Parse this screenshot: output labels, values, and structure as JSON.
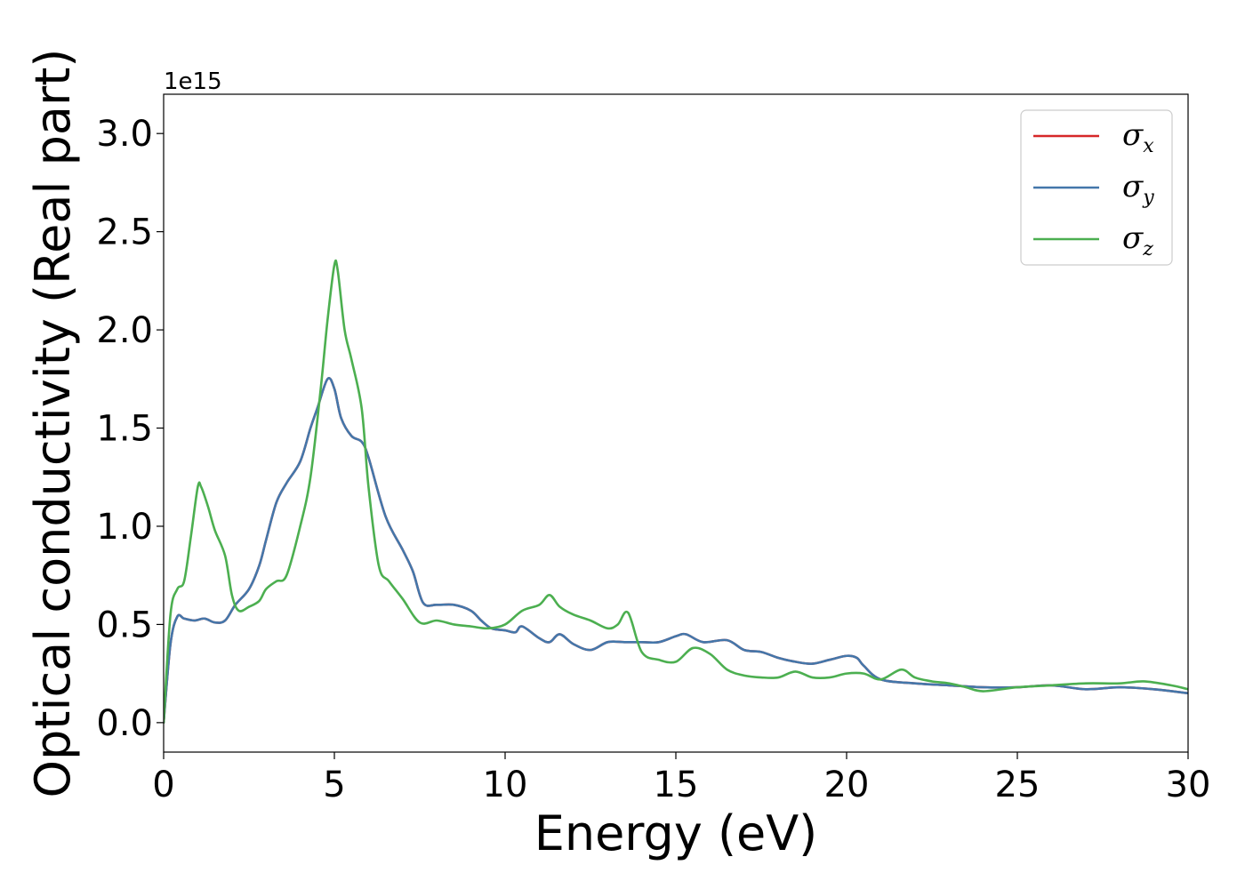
{
  "chart_data": {
    "type": "line",
    "title": "",
    "xlabel": "Energy (eV)",
    "ylabel": "Optical conductivity (Real part)",
    "y_offset_label": "1e15",
    "xlim": [
      0,
      30
    ],
    "ylim": [
      -0.15,
      3.2
    ],
    "x_ticks": [
      0,
      5,
      10,
      15,
      20,
      25,
      30
    ],
    "x_tick_labels": [
      "0",
      "5",
      "10",
      "15",
      "20",
      "25",
      "30"
    ],
    "y_ticks": [
      0.0,
      0.5,
      1.0,
      1.5,
      2.0,
      2.5,
      3.0
    ],
    "y_tick_labels": [
      "0.0",
      "0.5",
      "1.0",
      "1.5",
      "2.0",
      "2.5",
      "3.0"
    ],
    "grid": false,
    "legend_position": "top-right",
    "series": [
      {
        "name": "σx",
        "legend_symbol": "σ",
        "legend_sub": "x",
        "color": "#d62728",
        "x": [
          0,
          0.2,
          0.4,
          0.6,
          0.9,
          1.2,
          1.5,
          1.8,
          2.1,
          2.5,
          2.8,
          3.0,
          3.3,
          3.6,
          4.0,
          4.3,
          4.5,
          4.8,
          5.0,
          5.2,
          5.5,
          5.8,
          6.0,
          6.5,
          7.0,
          7.3,
          7.6,
          8.0,
          8.5,
          9.0,
          9.3,
          9.6,
          10.0,
          10.3,
          10.5,
          11.0,
          11.3,
          11.6,
          12.0,
          12.5,
          13.0,
          13.5,
          14.0,
          14.5,
          15.0,
          15.3,
          15.8,
          16.5,
          17.0,
          17.5,
          18.0,
          18.5,
          19.0,
          19.5,
          20.0,
          20.3,
          20.5,
          21.0,
          22.0,
          23.0,
          24.0,
          25.0,
          26.0,
          27.0,
          28.0,
          29.0,
          30.0
        ],
        "values": [
          0.0,
          0.4,
          0.54,
          0.53,
          0.52,
          0.53,
          0.51,
          0.52,
          0.6,
          0.68,
          0.8,
          0.93,
          1.12,
          1.22,
          1.33,
          1.5,
          1.6,
          1.75,
          1.7,
          1.55,
          1.46,
          1.43,
          1.35,
          1.05,
          0.88,
          0.77,
          0.61,
          0.6,
          0.6,
          0.57,
          0.52,
          0.48,
          0.47,
          0.46,
          0.49,
          0.43,
          0.41,
          0.45,
          0.4,
          0.37,
          0.41,
          0.41,
          0.41,
          0.41,
          0.44,
          0.45,
          0.41,
          0.42,
          0.37,
          0.36,
          0.33,
          0.31,
          0.3,
          0.32,
          0.34,
          0.33,
          0.29,
          0.22,
          0.2,
          0.19,
          0.18,
          0.18,
          0.19,
          0.17,
          0.18,
          0.17,
          0.15
        ]
      },
      {
        "name": "σy",
        "legend_symbol": "σ",
        "legend_sub": "y",
        "color": "#4477aa",
        "x": [
          0,
          0.2,
          0.4,
          0.6,
          0.9,
          1.2,
          1.5,
          1.8,
          2.1,
          2.5,
          2.8,
          3.0,
          3.3,
          3.6,
          4.0,
          4.3,
          4.5,
          4.8,
          5.0,
          5.2,
          5.5,
          5.8,
          6.0,
          6.5,
          7.0,
          7.3,
          7.6,
          8.0,
          8.5,
          9.0,
          9.3,
          9.6,
          10.0,
          10.3,
          10.5,
          11.0,
          11.3,
          11.6,
          12.0,
          12.5,
          13.0,
          13.5,
          14.0,
          14.5,
          15.0,
          15.3,
          15.8,
          16.5,
          17.0,
          17.5,
          18.0,
          18.5,
          19.0,
          19.5,
          20.0,
          20.3,
          20.5,
          21.0,
          22.0,
          23.0,
          24.0,
          25.0,
          26.0,
          27.0,
          28.0,
          29.0,
          30.0
        ],
        "values": [
          0.0,
          0.4,
          0.54,
          0.53,
          0.52,
          0.53,
          0.51,
          0.52,
          0.6,
          0.68,
          0.8,
          0.93,
          1.12,
          1.22,
          1.33,
          1.5,
          1.6,
          1.75,
          1.7,
          1.55,
          1.46,
          1.43,
          1.35,
          1.05,
          0.88,
          0.77,
          0.61,
          0.6,
          0.6,
          0.57,
          0.52,
          0.48,
          0.47,
          0.46,
          0.49,
          0.43,
          0.41,
          0.45,
          0.4,
          0.37,
          0.41,
          0.41,
          0.41,
          0.41,
          0.44,
          0.45,
          0.41,
          0.42,
          0.37,
          0.36,
          0.33,
          0.31,
          0.3,
          0.32,
          0.34,
          0.33,
          0.29,
          0.22,
          0.2,
          0.19,
          0.18,
          0.18,
          0.19,
          0.17,
          0.18,
          0.17,
          0.15
        ]
      },
      {
        "name": "σz",
        "legend_symbol": "σ",
        "legend_sub": "z",
        "color": "#4caf50",
        "x": [
          0,
          0.2,
          0.4,
          0.6,
          0.8,
          1.0,
          1.1,
          1.3,
          1.5,
          1.8,
          2.0,
          2.2,
          2.5,
          2.8,
          3.0,
          3.3,
          3.6,
          4.0,
          4.3,
          4.6,
          4.8,
          5.0,
          5.1,
          5.3,
          5.5,
          5.8,
          6.0,
          6.3,
          6.6,
          7.0,
          7.5,
          8.0,
          8.5,
          9.0,
          9.5,
          10.0,
          10.5,
          11.0,
          11.3,
          11.6,
          12.0,
          12.5,
          13.0,
          13.3,
          13.6,
          14.0,
          14.5,
          15.0,
          15.5,
          16.0,
          16.5,
          17.0,
          17.5,
          18.0,
          18.5,
          19.0,
          19.5,
          20.0,
          20.5,
          21.0,
          21.6,
          22.0,
          22.5,
          23.0,
          23.5,
          24.0,
          25.0,
          26.0,
          27.0,
          28.0,
          28.7,
          29.5,
          30.0
        ],
        "values": [
          0.0,
          0.55,
          0.68,
          0.72,
          0.95,
          1.2,
          1.2,
          1.1,
          0.98,
          0.85,
          0.65,
          0.57,
          0.59,
          0.62,
          0.68,
          0.72,
          0.75,
          1.0,
          1.25,
          1.7,
          2.05,
          2.33,
          2.3,
          2.0,
          1.85,
          1.6,
          1.2,
          0.8,
          0.72,
          0.63,
          0.51,
          0.52,
          0.5,
          0.49,
          0.48,
          0.5,
          0.57,
          0.6,
          0.65,
          0.59,
          0.55,
          0.52,
          0.48,
          0.5,
          0.56,
          0.36,
          0.32,
          0.31,
          0.38,
          0.35,
          0.27,
          0.24,
          0.23,
          0.23,
          0.26,
          0.23,
          0.23,
          0.25,
          0.25,
          0.22,
          0.27,
          0.23,
          0.21,
          0.2,
          0.18,
          0.16,
          0.18,
          0.19,
          0.2,
          0.2,
          0.21,
          0.19,
          0.17
        ]
      }
    ]
  }
}
